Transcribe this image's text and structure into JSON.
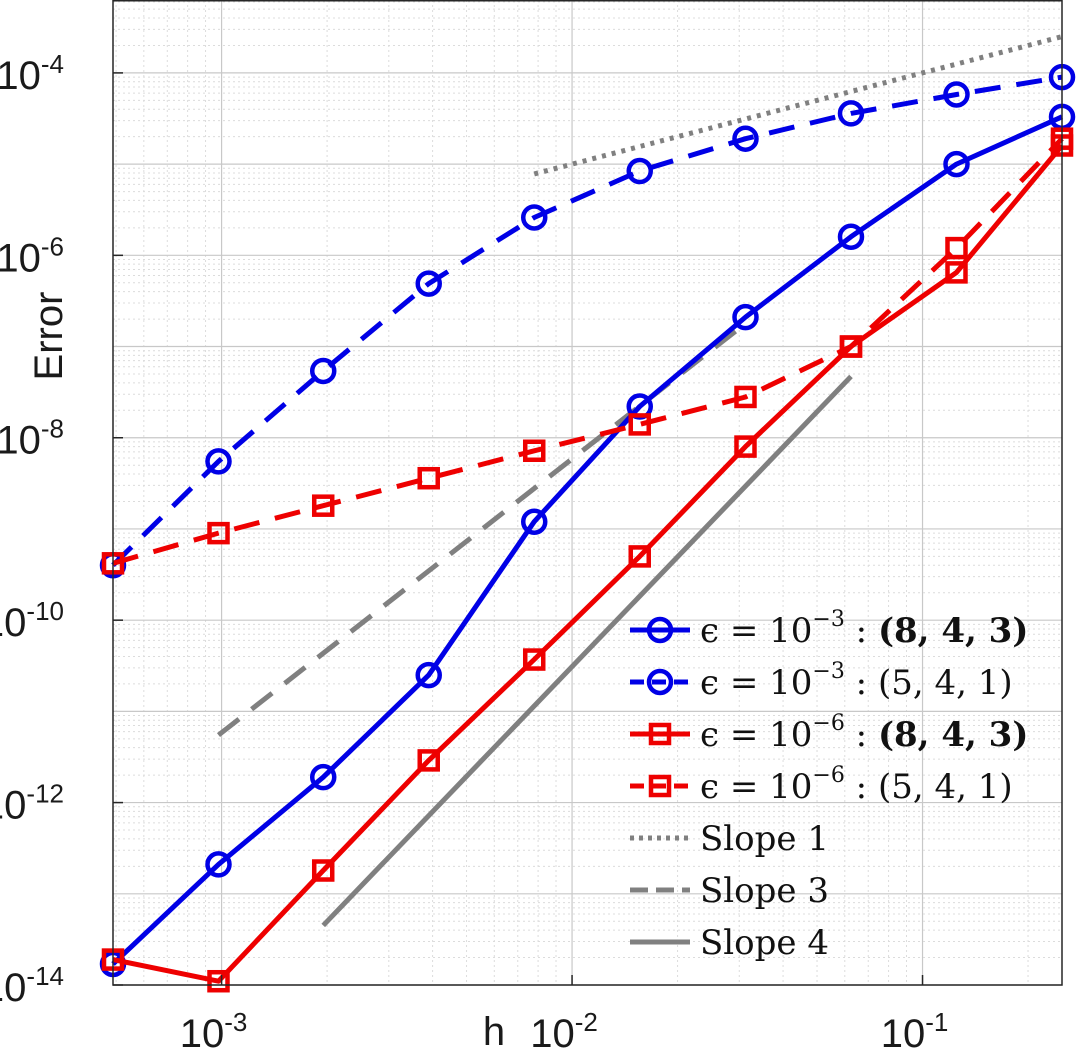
{
  "chart_data": {
    "type": "line",
    "xscale": "log",
    "yscale": "log",
    "xlabel": "h",
    "ylabel": "Error",
    "xlim": [
      0.00049,
      0.25
    ],
    "ylim": [
      1e-14,
      0.00063
    ],
    "x_ticks": [
      {
        "value": 0.001,
        "base": "10",
        "exp": "-3"
      },
      {
        "value": 0.01,
        "base": "10",
        "exp": "-2"
      },
      {
        "value": 0.1,
        "base": "10",
        "exp": "-1"
      }
    ],
    "y_ticks": [
      {
        "value": 1e-14,
        "base": "10",
        "exp": "-14"
      },
      {
        "value": 1e-12,
        "base": "10",
        "exp": "-12"
      },
      {
        "value": 1e-10,
        "base": "10",
        "exp": "-10"
      },
      {
        "value": 1e-08,
        "base": "10",
        "exp": "-8"
      },
      {
        "value": 1e-06,
        "base": "10",
        "exp": "-6"
      },
      {
        "value": 0.0001,
        "base": "10",
        "exp": "-4"
      }
    ],
    "grid": true,
    "minor_grid": true,
    "legend_position": "bottom-right",
    "series": [
      {
        "name": "eps1e-3-843",
        "legend": {
          "pre": "ϵ = 10",
          "sup": "−3",
          "post": " : ",
          "tuple": "(8, 4, 3)",
          "bold_tuple": true
        },
        "color": "#0000e6",
        "dash": "solid",
        "marker": "circle",
        "x": [
          0.00049,
          0.00098,
          0.00195,
          0.0039,
          0.0078,
          0.0156,
          0.03125,
          0.0625,
          0.125,
          0.25
        ],
        "y": [
          1.7e-14,
          2.1e-13,
          1.9e-12,
          2.5e-11,
          1.2e-09,
          2.2e-08,
          2.1e-07,
          1.6e-06,
          1e-05,
          3.3e-05
        ]
      },
      {
        "name": "eps1e-3-541",
        "legend": {
          "pre": "ϵ = 10",
          "sup": "−3",
          "post": " : ",
          "tuple": "(5, 4, 1)",
          "bold_tuple": false
        },
        "color": "#0000e6",
        "dash": "dashed",
        "marker": "circle",
        "x": [
          0.00049,
          0.00098,
          0.00195,
          0.0039,
          0.0078,
          0.0156,
          0.03125,
          0.0625,
          0.125,
          0.25
        ],
        "y": [
          4e-10,
          5.5e-09,
          5.4e-08,
          4.9e-07,
          2.6e-06,
          8.4e-06,
          1.9e-05,
          3.6e-05,
          5.8e-05,
          9e-05
        ]
      },
      {
        "name": "eps1e-6-843",
        "legend": {
          "pre": "ϵ = 10",
          "sup": "−6",
          "post": " : ",
          "tuple": "(8, 4, 3)",
          "bold_tuple": true
        },
        "color": "#ee0000",
        "dash": "solid",
        "marker": "square",
        "x": [
          0.00049,
          0.00098,
          0.00195,
          0.0039,
          0.0078,
          0.0156,
          0.03125,
          0.0625,
          0.125,
          0.25
        ],
        "y": [
          1.9e-14,
          1.1e-14,
          1.8e-13,
          2.9e-12,
          3.7e-11,
          5e-10,
          8e-09,
          1e-07,
          6.5e-07,
          1.6e-05
        ]
      },
      {
        "name": "eps1e-6-541",
        "legend": {
          "pre": "ϵ = 10",
          "sup": "−6",
          "post": " : ",
          "tuple": "(5, 4, 1)",
          "bold_tuple": false
        },
        "color": "#ee0000",
        "dash": "dashed",
        "marker": "square",
        "x": [
          0.00049,
          0.00098,
          0.00195,
          0.0039,
          0.0078,
          0.0156,
          0.03125,
          0.0625,
          0.125,
          0.25
        ],
        "y": [
          4.2e-10,
          9e-10,
          1.8e-09,
          3.6e-09,
          7.2e-09,
          1.4e-08,
          2.8e-08,
          1e-07,
          1.2e-06,
          1.9e-05
        ]
      }
    ],
    "reference_lines": [
      {
        "name": "slope-1",
        "legend": "Slope 1",
        "color": "#808080",
        "dash": "dotted",
        "x": [
          0.0078,
          0.25
        ],
        "y": [
          7.8e-06,
          0.00025
        ]
      },
      {
        "name": "slope-3",
        "legend": "Slope 3",
        "color": "#808080",
        "dash": "dashed",
        "x": [
          0.00098,
          0.031
        ],
        "y": [
          5.5e-12,
          1.75e-07
        ]
      },
      {
        "name": "slope-4",
        "legend": "Slope 4",
        "color": "#808080",
        "dash": "solid",
        "x": [
          0.00195,
          0.0625
        ],
        "y": [
          4.5e-14,
          4.7e-08
        ]
      }
    ]
  }
}
